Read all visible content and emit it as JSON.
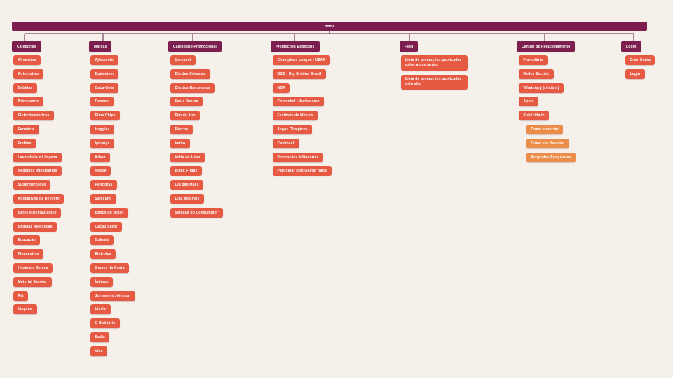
{
  "home": {
    "label": "Home"
  },
  "colors": {
    "background": "#f5f1ea",
    "header": "#7d1f4e",
    "item_red": "#e65943",
    "item_orange": "#ec8c49",
    "connector_line": "#5c1a41",
    "text": "#ffffff"
  },
  "columns": [
    {
      "label": "Categorias",
      "items": [
        {
          "label": "Alimentos",
          "variant": "red"
        },
        {
          "label": "Automotivo",
          "variant": "red"
        },
        {
          "label": "Bebidas",
          "variant": "red"
        },
        {
          "label": "Brinquedos",
          "variant": "red"
        },
        {
          "label": "Eletrodomésticos",
          "variant": "red"
        },
        {
          "label": "Farmácia",
          "variant": "red"
        },
        {
          "label": "Fraldas",
          "variant": "red"
        },
        {
          "label": "Lavanderia e Limpeza",
          "variant": "red"
        },
        {
          "label": "Negócios Imobiliários",
          "variant": "red"
        },
        {
          "label": "Supermercados",
          "variant": "red"
        },
        {
          "label": "Aplicativos de Delivery",
          "variant": "red"
        },
        {
          "label": "Bares e Restaurantes",
          "variant": "red"
        },
        {
          "label": "Bebidas Alcoólicas",
          "variant": "red"
        },
        {
          "label": "Educação",
          "variant": "red"
        },
        {
          "label": "Financeiros",
          "variant": "red"
        },
        {
          "label": "Higiene e Beleza",
          "variant": "red"
        },
        {
          "label": "Material Escolar",
          "variant": "red"
        },
        {
          "label": "Pet",
          "variant": "red"
        },
        {
          "label": "Viagens",
          "variant": "red"
        }
      ]
    },
    {
      "label": "Marcas",
      "items": [
        {
          "label": "Ajinomoto",
          "variant": "red"
        },
        {
          "label": "Budweiser",
          "variant": "red"
        },
        {
          "label": "Coca-Cola",
          "variant": "red"
        },
        {
          "label": "Danone",
          "variant": "red"
        },
        {
          "label": "Elma Chips",
          "variant": "red"
        },
        {
          "label": "Huggies",
          "variant": "red"
        },
        {
          "label": "Ipiranga",
          "variant": "red"
        },
        {
          "label": "Kibon",
          "variant": "red"
        },
        {
          "label": "Nestlé",
          "variant": "red"
        },
        {
          "label": "Petrobrás",
          "variant": "red"
        },
        {
          "label": "Samsung",
          "variant": "red"
        },
        {
          "label": "Banco do Brasil",
          "variant": "red"
        },
        {
          "label": "Cacau Show",
          "variant": "red"
        },
        {
          "label": "Colgate",
          "variant": "red"
        },
        {
          "label": "Eletrolux",
          "variant": "red"
        },
        {
          "label": "Gomes da Costa",
          "variant": "red"
        },
        {
          "label": "Íntimus",
          "variant": "red"
        },
        {
          "label": "Johnson e Johnson",
          "variant": "red"
        },
        {
          "label": "Livelo",
          "variant": "red"
        },
        {
          "label": "O Boticário",
          "variant": "red"
        },
        {
          "label": "Sadia",
          "variant": "red"
        },
        {
          "label": "Visa",
          "variant": "red"
        }
      ]
    },
    {
      "label": "Calendário Promocional",
      "items": [
        {
          "label": "Carnaval",
          "variant": "red"
        },
        {
          "label": "Dia das Crianças",
          "variant": "red"
        },
        {
          "label": "Dia dos Namorados",
          "variant": "red"
        },
        {
          "label": "Festa Junina",
          "variant": "red"
        },
        {
          "label": "Fim de Ano",
          "variant": "red"
        },
        {
          "label": "Páscoa",
          "variant": "red"
        },
        {
          "label": "Verão",
          "variant": "red"
        },
        {
          "label": "Volta às Aulas",
          "variant": "red"
        },
        {
          "label": "Black Friday",
          "variant": "red"
        },
        {
          "label": "Dia das Mães",
          "variant": "red"
        },
        {
          "label": "Dias dos Pais",
          "variant": "red"
        },
        {
          "label": "Semana do Consumidor",
          "variant": "red"
        }
      ]
    },
    {
      "label": "Promoções Especiais",
      "items": [
        {
          "label": "Champions League - UEFA",
          "variant": "red"
        },
        {
          "label": "BBB - Big Brother Brasil",
          "variant": "red"
        },
        {
          "label": "NBA",
          "variant": "red"
        },
        {
          "label": "Conmebol Libertadores",
          "variant": "red"
        },
        {
          "label": "Festivais de Música",
          "variant": "red"
        },
        {
          "label": "Jogos Olímpicos",
          "variant": "red"
        },
        {
          "label": "Cashback",
          "variant": "red"
        },
        {
          "label": "Promoções Milionárias",
          "variant": "red"
        },
        {
          "label": "Participar sem Gastar Nada",
          "variant": "red"
        }
      ]
    },
    {
      "label": "Feed",
      "items": [
        {
          "label": "Lista de promoções publicadas pelos anunciantes",
          "variant": "red",
          "wide": true
        },
        {
          "label": "Lista de promoções publicadas pelo site",
          "variant": "red",
          "wide": true
        }
      ]
    },
    {
      "label": "Central de Relacionamento",
      "items": [
        {
          "label": "Formulário",
          "variant": "red"
        },
        {
          "label": "Redes Sociais",
          "variant": "red"
        },
        {
          "label": "WhatsApp (chatbot)",
          "variant": "red"
        },
        {
          "label": "Ajuda",
          "variant": "red"
        },
        {
          "label": "Publicidade",
          "variant": "red"
        },
        {
          "label": "Como anunciar",
          "variant": "orange"
        },
        {
          "label": "Como ser Parceiro",
          "variant": "orange"
        },
        {
          "label": "Perguntas Frequentes",
          "variant": "orange"
        }
      ]
    },
    {
      "label": "Login",
      "items": [
        {
          "label": "Criar Conta",
          "variant": "red"
        },
        {
          "label": "Login",
          "variant": "red"
        }
      ]
    }
  ]
}
